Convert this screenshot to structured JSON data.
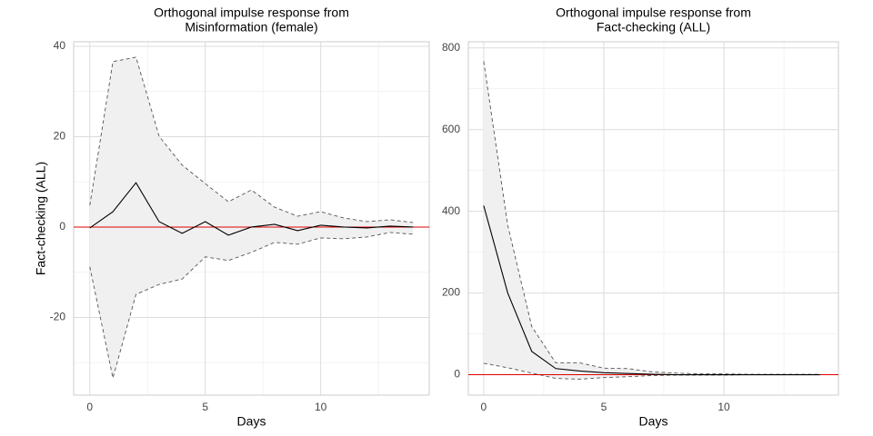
{
  "chart_data": [
    {
      "type": "line",
      "title": [
        "Orthogonal impulse response from",
        "Misinformation (female)"
      ],
      "xlabel": "Days",
      "ylabel": "Fact-checking (ALL)",
      "x": [
        0,
        1,
        2,
        3,
        4,
        5,
        6,
        7,
        8,
        9,
        10,
        11,
        12,
        13,
        14
      ],
      "values": [
        -0.2,
        3.4,
        9.8,
        1.2,
        -1.4,
        1.2,
        -1.8,
        0,
        0.6,
        -0.8,
        0.4,
        0,
        -0.2,
        0.2,
        0
      ],
      "upper": [
        4.8,
        36.6,
        37.6,
        20.1,
        13.7,
        9.6,
        5.6,
        8.2,
        4.4,
        2.4,
        3.4,
        2,
        1.2,
        1.6,
        1
      ],
      "lower": [
        -8.8,
        -33.4,
        -14.9,
        -12.7,
        -11.5,
        -6.6,
        -7.4,
        -5.6,
        -3.4,
        -3.8,
        -2.4,
        -2.6,
        -2.2,
        -1.2,
        -1.6
      ],
      "color": "#000000",
      "band_color": "#f0f0f0",
      "band_line_color": "#555555",
      "zero_line_color": "#e00000",
      "xlim": [
        -0.7,
        14.7
      ],
      "ylim": [
        -37.2,
        41
      ],
      "xticks": [
        0,
        5,
        10
      ],
      "yticks": [
        -20,
        0,
        20,
        40
      ],
      "xminor": [
        2.5,
        7.5,
        12.5
      ],
      "yminor": [
        -30,
        -10,
        10,
        30
      ],
      "grid": true
    },
    {
      "type": "line",
      "title": [
        "Orthogonal impulse response from",
        "Fact-checking (ALL)"
      ],
      "xlabel": "Days",
      "x": [
        0,
        1,
        2,
        3,
        4,
        5,
        6,
        7,
        8,
        9,
        10,
        11,
        12,
        13,
        14
      ],
      "values": [
        414,
        200,
        57,
        15,
        9,
        5,
        3,
        1,
        0,
        0,
        0,
        0,
        0,
        0,
        0
      ],
      "upper": [
        767,
        366,
        118,
        29,
        29,
        16,
        15,
        7,
        4,
        2,
        2,
        1,
        1,
        1,
        1
      ],
      "lower": [
        28,
        17,
        4,
        -9,
        -11,
        -7,
        -5,
        -2,
        -1,
        -1,
        -1,
        0,
        0,
        0,
        0
      ],
      "color": "#000000",
      "band_color": "#f0f0f0",
      "band_line_color": "#555555",
      "zero_line_color": "#e00000",
      "xlim": [
        -0.64,
        14.77
      ],
      "ylim": [
        -50,
        815
      ],
      "xticks": [
        0,
        5,
        10
      ],
      "yticks": [
        0,
        200,
        400,
        600,
        800
      ],
      "xminor": [
        2.5,
        7.5,
        12.5
      ],
      "yminor": [
        100,
        300,
        500,
        700
      ],
      "grid": true
    }
  ]
}
